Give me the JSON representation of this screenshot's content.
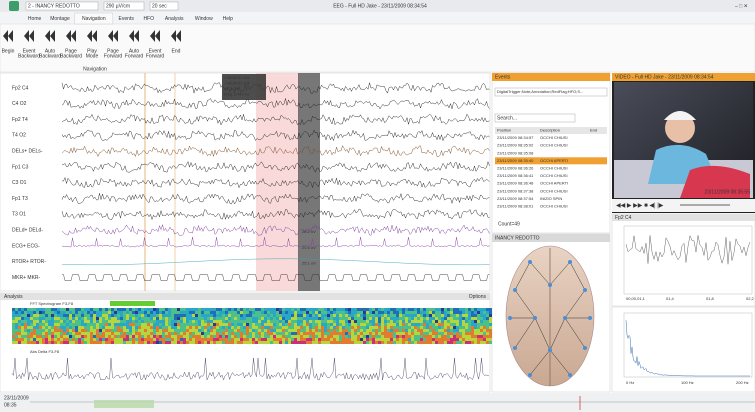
{
  "titlebar": {
    "patient": "2 - INANCY REDOTTO",
    "sensitivity": "290 µV/cm",
    "timebase": "20 sec",
    "title": "EEG - Full HD Jake - 23/11/2009 08:34:54"
  },
  "tabs": [
    "Home",
    "Montage",
    "Navigation",
    "Events",
    "HFO",
    "Analysis",
    "Window",
    "Help"
  ],
  "ribbon": {
    "buttons": [
      [
        "Begin"
      ],
      [
        "Event",
        "Backward"
      ],
      [
        "Auto",
        "Backward"
      ],
      [
        "Page",
        "Backward"
      ],
      [
        "Play",
        "Mode"
      ],
      [
        "Page",
        "Forward"
      ],
      [
        "Auto",
        "Forward"
      ],
      [
        "Event",
        "Forward"
      ],
      [
        "End"
      ]
    ],
    "group": "Navigation"
  },
  "eeg": {
    "channels": [
      "Fp2 C4",
      "C4 O2",
      "Fp2 T4",
      "T4 O2",
      "DELs+ DELs-",
      "Fp1 C3",
      "C3 O1",
      "Fp1 T3",
      "T3 O1",
      "DELd+ DELd-",
      "ECG+ ECG-",
      "RTOR+ RTOR-",
      "MKR+ MKR-"
    ],
    "scales": [
      "28.2 uV",
      "20.5 uV",
      "25.1 uV"
    ],
    "cursor": [
      "+ 08:34:01.134",
      "+ 08:34:01.134",
      "ΔT: 1,2 s",
      "Freq: 3,441 Hz"
    ]
  },
  "events": {
    "title": "Events",
    "filter": "DigitalTrigger;Note;Annotation;RedFlag;HFO;S...",
    "search": "Search...",
    "columns": [
      "Position",
      "Description",
      "End"
    ],
    "rows": [
      [
        "23/11/2009 08:34:57",
        "OCCHI CHIUSI"
      ],
      [
        "23/11/2009 08:35:02",
        "OCCHI CHIUSI"
      ],
      [
        "23/11/2009 08:35:08",
        ""
      ],
      [
        "23/11/2009 08:35:40",
        "OCCHI APERTI"
      ],
      [
        "23/11/2009 08:36:26",
        "OCCHI CHIUSI"
      ],
      [
        "23/11/2009 08:36:41",
        "OCCHI CHIUSI"
      ],
      [
        "23/11/2009 08:36:48",
        "OCCHI APERTI"
      ],
      [
        "23/11/2009 08:37:38",
        "OCCHI CHIUSI"
      ],
      [
        "23/11/2009 08:37:54",
        "INIZIO SPIN"
      ],
      [
        "23/11/2009 08:38:01",
        "OCCHI CHIUSI"
      ]
    ],
    "count": "Count=49"
  },
  "map": {
    "title": "INANCY REDOTTO"
  },
  "video": {
    "title": "VIDEO - Full HD Jake - 23/11/2009 08:34:54",
    "timestamp": "23/11/2009 08:35:55"
  },
  "trend": {
    "title": "Fp2 C4",
    "ticks": [
      "00,00,01,1",
      "01,4",
      "01,8",
      "02,2"
    ]
  },
  "spectrum": {
    "ticks": [
      "0 Hz",
      "100 Hz",
      "200 Hz"
    ]
  },
  "analysis": {
    "title": "Analysis",
    "options": "Options",
    "spectrogram": "FFT Spectrogram F3-F8",
    "delta": "Abs Delta F3-F8"
  },
  "timeline": {
    "date": "23/11/2009",
    "time": "08:35"
  }
}
